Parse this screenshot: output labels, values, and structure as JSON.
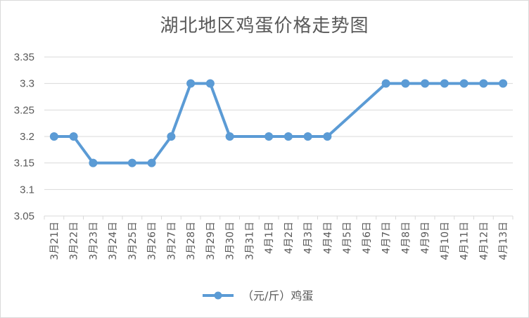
{
  "chart_data": {
    "type": "line",
    "title": "湖北地区鸡蛋价格走势图",
    "categories": [
      "3月21日",
      "3月22日",
      "3月23日",
      "3月24日",
      "3月25日",
      "3月26日",
      "3月27日",
      "3月28日",
      "3月29日",
      "3月30日",
      "3月31日",
      "4月1日",
      "4月2日",
      "4月3日",
      "4月4日",
      "4月5日",
      "4月6日",
      "4月7日",
      "4月8日",
      "4月9日",
      "4月10日",
      "4月11日",
      "4月12日",
      "4月13日"
    ],
    "series": [
      {
        "name": "（元/斤）鸡蛋",
        "color": "#5b9bd5",
        "values": [
          3.2,
          3.2,
          3.15,
          null,
          3.15,
          3.15,
          3.2,
          3.3,
          3.3,
          3.2,
          null,
          3.2,
          3.2,
          3.2,
          3.2,
          null,
          null,
          3.3,
          3.3,
          3.3,
          3.3,
          3.3,
          3.3,
          3.3
        ]
      }
    ],
    "ylim": [
      3.05,
      3.35
    ],
    "yticks": [
      "3.05",
      "3.1",
      "3.15",
      "3.2",
      "3.25",
      "3.3",
      "3.35"
    ],
    "grid": true,
    "legend": "bottom"
  }
}
